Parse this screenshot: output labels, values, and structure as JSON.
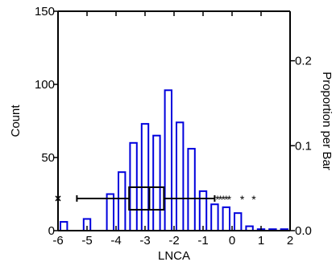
{
  "chart_data": {
    "type": "bar",
    "subtype": "histogram_with_boxplot",
    "title": "",
    "xlabel": "LNCA",
    "ylabel": "Count",
    "y2label": "Proportion per Bar",
    "xlim": [
      -6,
      2
    ],
    "ylim": [
      0,
      150
    ],
    "y2lim": [
      0,
      0.2583
    ],
    "x_ticks": [
      "-6",
      "-5",
      "-4",
      "-3",
      "-2",
      "-1",
      "0",
      "1",
      "2"
    ],
    "y_ticks": [
      "0",
      "50",
      "100",
      "150"
    ],
    "y2_ticks": [
      "0.0",
      "0.1",
      "0.2"
    ],
    "bin_width": 0.4,
    "bin_starts": [
      -6.0,
      -5.6,
      -5.2,
      -4.8,
      -4.4,
      -4.0,
      -3.6,
      -3.2,
      -2.8,
      -2.4,
      -2.0,
      -1.6,
      -1.2,
      -0.8,
      -0.4,
      0.0,
      0.4,
      0.8,
      1.2,
      1.6
    ],
    "counts": [
      6,
      0,
      8,
      0,
      25,
      40,
      60,
      73,
      65,
      96,
      74,
      56,
      27,
      18,
      16,
      12,
      3,
      1,
      1,
      1
    ],
    "bar_color": "#0000dd",
    "boxplot": {
      "y_level": 22,
      "whisker_low": -5.35,
      "q1": -3.55,
      "median": -2.85,
      "q3": -2.35,
      "whisker_high": -0.6,
      "outliers_star": [
        -0.5,
        -0.4,
        -0.3,
        -0.2,
        -0.1,
        0.35,
        0.75
      ],
      "outliers_far": [
        -6.0
      ]
    },
    "grid": false,
    "legend": "none"
  }
}
